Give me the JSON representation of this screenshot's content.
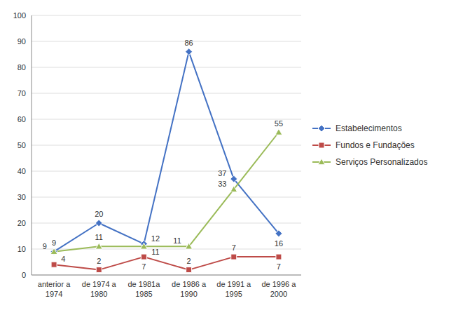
{
  "chart_data": {
    "type": "line",
    "categories": [
      "anterior a\n1974",
      "de 1974 a\n1980",
      "de 1981a\n1985",
      "de 1986 a\n1990",
      "de 1991 a\n1995",
      "de 1996 a\n2000"
    ],
    "series": [
      {
        "name": "Estabelecimentos",
        "color": "#4472C4",
        "marker": "diamond",
        "values": [
          9,
          20,
          12,
          86,
          37,
          16
        ]
      },
      {
        "name": "Fundos e Fundações",
        "color": "#BE4B48",
        "marker": "square",
        "values": [
          4,
          2,
          7,
          2,
          7,
          7
        ]
      },
      {
        "name": "Serviços Personalizados",
        "color": "#9BBB59",
        "marker": "triangle",
        "values": [
          9,
          11,
          11,
          11,
          33,
          55
        ]
      }
    ],
    "ylim": [
      0,
      100
    ],
    "yticks": [
      0,
      10,
      20,
      30,
      40,
      50,
      60,
      70,
      80,
      90,
      100
    ],
    "grid": true,
    "legend": "right",
    "data_labels": true
  }
}
